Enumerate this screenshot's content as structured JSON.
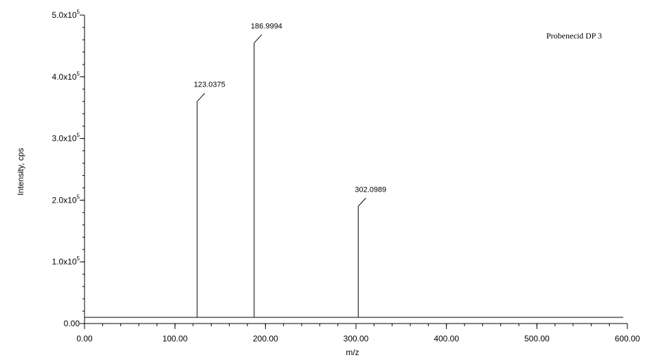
{
  "chart_data": {
    "type": "bar",
    "annotation": "Probenecid DP 3",
    "xlabel": "m/z",
    "ylabel": "Intensity, cps",
    "xlim": [
      0,
      600
    ],
    "ylim": [
      0,
      500000
    ],
    "baseline": 10000,
    "x_ticks": [
      {
        "value": 0,
        "label": "0.00"
      },
      {
        "value": 100,
        "label": "100.00"
      },
      {
        "value": 200,
        "label": "200.00"
      },
      {
        "value": 300,
        "label": "300.00"
      },
      {
        "value": 400,
        "label": "400.00"
      },
      {
        "value": 500,
        "label": "500.00"
      },
      {
        "value": 600,
        "label": "600.00"
      }
    ],
    "y_ticks": [
      {
        "value": 0,
        "label": "0.00",
        "mantissa": "",
        "exponent": ""
      },
      {
        "value": 100000,
        "label": "",
        "mantissa": "1.0x10",
        "exponent": "5"
      },
      {
        "value": 200000,
        "label": "",
        "mantissa": "2.0x10",
        "exponent": "5"
      },
      {
        "value": 300000,
        "label": "",
        "mantissa": "3.0x10",
        "exponent": "5"
      },
      {
        "value": 400000,
        "label": "",
        "mantissa": "4.0x10",
        "exponent": "5"
      },
      {
        "value": 500000,
        "label": "",
        "mantissa": "5.0x10",
        "exponent": "5"
      }
    ],
    "peaks": [
      {
        "x": 124.5,
        "y": 360000,
        "label": "123.0375"
      },
      {
        "x": 187.5,
        "y": 455000,
        "label": "186.9994"
      },
      {
        "x": 302.5,
        "y": 190000,
        "label": "302.0989"
      }
    ]
  }
}
